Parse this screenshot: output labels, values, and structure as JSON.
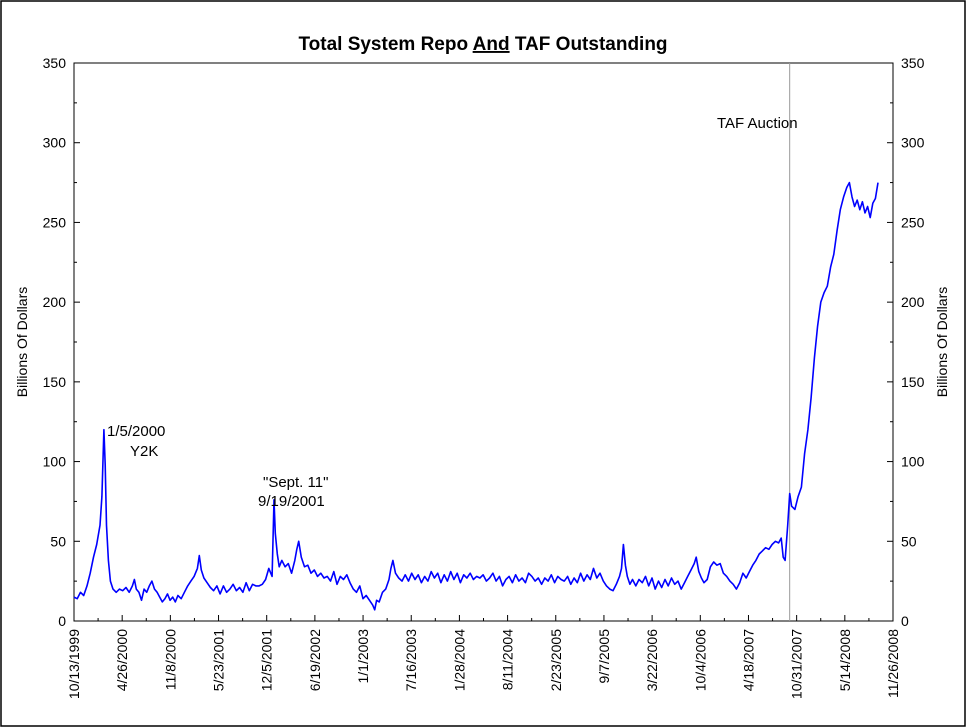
{
  "chart_data": {
    "type": "line",
    "title_parts": [
      "Total System Repo ",
      "And",
      " TAF Outstanding"
    ],
    "ylabel_left": "Billions Of Dollars",
    "ylabel_right": "Billions Of Dollars",
    "ylim": [
      0,
      350
    ],
    "y_ticks": [
      0,
      50,
      100,
      150,
      200,
      250,
      300,
      350
    ],
    "x_tick_labels": [
      "10/13/1999",
      "4/26/2000",
      "11/8/2000",
      "5/23/2001",
      "12/5/2001",
      "6/19/2002",
      "1/1/2003",
      "7/16/2003",
      "1/28/2004",
      "8/11/2004",
      "2/23/2005",
      "9/7/2005",
      "3/22/2006",
      "10/4/2006",
      "4/18/2007",
      "10/31/2007",
      "5/14/2008",
      "11/26/2008"
    ],
    "x_range_months": [
      0,
      110
    ],
    "series": [
      {
        "name": "Total System Repo And TAF",
        "color": "#0000ff",
        "points": [
          [
            0.0,
            15
          ],
          [
            0.5,
            14
          ],
          [
            1.0,
            18
          ],
          [
            1.5,
            16
          ],
          [
            2.0,
            22
          ],
          [
            2.5,
            30
          ],
          [
            3.0,
            40
          ],
          [
            3.5,
            48
          ],
          [
            4.0,
            60
          ],
          [
            4.3,
            78
          ],
          [
            4.6,
            120
          ],
          [
            4.8,
            98
          ],
          [
            5.0,
            60
          ],
          [
            5.3,
            38
          ],
          [
            5.6,
            25
          ],
          [
            6.0,
            20
          ],
          [
            6.5,
            18
          ],
          [
            7.0,
            20
          ],
          [
            7.5,
            19
          ],
          [
            8.0,
            21
          ],
          [
            8.5,
            18
          ],
          [
            9.0,
            22
          ],
          [
            9.3,
            26
          ],
          [
            9.6,
            20
          ],
          [
            10.0,
            18
          ],
          [
            10.4,
            13
          ],
          [
            10.8,
            20
          ],
          [
            11.2,
            18
          ],
          [
            11.6,
            22
          ],
          [
            12.0,
            25
          ],
          [
            12.4,
            20
          ],
          [
            12.8,
            18
          ],
          [
            13.2,
            15
          ],
          [
            13.6,
            12
          ],
          [
            14.0,
            14
          ],
          [
            14.4,
            17
          ],
          [
            14.8,
            13
          ],
          [
            15.2,
            15
          ],
          [
            15.6,
            12
          ],
          [
            16.0,
            16
          ],
          [
            16.5,
            14
          ],
          [
            17.0,
            18
          ],
          [
            17.5,
            22
          ],
          [
            18.0,
            25
          ],
          [
            18.5,
            28
          ],
          [
            19.0,
            33
          ],
          [
            19.3,
            41
          ],
          [
            19.6,
            32
          ],
          [
            20.0,
            27
          ],
          [
            20.5,
            24
          ],
          [
            21.0,
            21
          ],
          [
            21.5,
            19
          ],
          [
            22.0,
            22
          ],
          [
            22.5,
            17
          ],
          [
            23.0,
            22
          ],
          [
            23.5,
            18
          ],
          [
            24.0,
            20
          ],
          [
            24.5,
            23
          ],
          [
            25.0,
            19
          ],
          [
            25.5,
            21
          ],
          [
            26.0,
            18
          ],
          [
            26.5,
            24
          ],
          [
            27.0,
            19
          ],
          [
            27.5,
            23
          ],
          [
            28.0,
            22
          ],
          [
            28.5,
            22
          ],
          [
            29.0,
            23
          ],
          [
            29.5,
            26
          ],
          [
            30.0,
            33
          ],
          [
            30.5,
            28
          ],
          [
            30.8,
            76
          ],
          [
            31.0,
            55
          ],
          [
            31.3,
            42
          ],
          [
            31.6,
            34
          ],
          [
            32.0,
            38
          ],
          [
            32.5,
            34
          ],
          [
            33.0,
            36
          ],
          [
            33.5,
            30
          ],
          [
            34.0,
            38
          ],
          [
            34.3,
            45
          ],
          [
            34.6,
            50
          ],
          [
            35.0,
            40
          ],
          [
            35.5,
            34
          ],
          [
            36.0,
            35
          ],
          [
            36.5,
            30
          ],
          [
            37.0,
            32
          ],
          [
            37.5,
            28
          ],
          [
            38.0,
            30
          ],
          [
            38.5,
            27
          ],
          [
            39.0,
            28
          ],
          [
            39.5,
            25
          ],
          [
            40.0,
            31
          ],
          [
            40.5,
            23
          ],
          [
            41.0,
            28
          ],
          [
            41.5,
            26
          ],
          [
            42.0,
            29
          ],
          [
            42.5,
            24
          ],
          [
            43.0,
            20
          ],
          [
            43.5,
            18
          ],
          [
            44.0,
            22
          ],
          [
            44.5,
            14
          ],
          [
            45.0,
            16
          ],
          [
            45.5,
            13
          ],
          [
            46.0,
            10
          ],
          [
            46.3,
            7
          ],
          [
            46.6,
            13
          ],
          [
            47.0,
            12
          ],
          [
            47.5,
            18
          ],
          [
            48.0,
            20
          ],
          [
            48.5,
            26
          ],
          [
            48.8,
            33
          ],
          [
            49.1,
            38
          ],
          [
            49.5,
            30
          ],
          [
            50.0,
            27
          ],
          [
            50.5,
            25
          ],
          [
            51.0,
            29
          ],
          [
            51.5,
            25
          ],
          [
            52.0,
            30
          ],
          [
            52.5,
            26
          ],
          [
            53.0,
            29
          ],
          [
            53.5,
            24
          ],
          [
            54.0,
            28
          ],
          [
            54.5,
            25
          ],
          [
            55.0,
            31
          ],
          [
            55.5,
            27
          ],
          [
            56.0,
            30
          ],
          [
            56.5,
            24
          ],
          [
            57.0,
            29
          ],
          [
            57.5,
            25
          ],
          [
            58.0,
            31
          ],
          [
            58.5,
            26
          ],
          [
            59.0,
            30
          ],
          [
            59.5,
            24
          ],
          [
            60.0,
            29
          ],
          [
            60.5,
            27
          ],
          [
            61.0,
            30
          ],
          [
            61.5,
            26
          ],
          [
            62.0,
            28
          ],
          [
            62.5,
            27
          ],
          [
            63.0,
            29
          ],
          [
            63.5,
            25
          ],
          [
            64.0,
            27
          ],
          [
            64.5,
            30
          ],
          [
            65.0,
            25
          ],
          [
            65.5,
            28
          ],
          [
            66.0,
            22
          ],
          [
            66.5,
            26
          ],
          [
            67.0,
            28
          ],
          [
            67.5,
            24
          ],
          [
            68.0,
            29
          ],
          [
            68.5,
            25
          ],
          [
            69.0,
            27
          ],
          [
            69.5,
            24
          ],
          [
            70.0,
            30
          ],
          [
            70.5,
            28
          ],
          [
            71.0,
            25
          ],
          [
            71.5,
            27
          ],
          [
            72.0,
            23
          ],
          [
            72.5,
            27
          ],
          [
            73.0,
            25
          ],
          [
            73.5,
            29
          ],
          [
            74.0,
            24
          ],
          [
            74.5,
            28
          ],
          [
            75.0,
            26
          ],
          [
            75.5,
            25
          ],
          [
            76.0,
            28
          ],
          [
            76.5,
            23
          ],
          [
            77.0,
            27
          ],
          [
            77.5,
            24
          ],
          [
            78.0,
            30
          ],
          [
            78.5,
            25
          ],
          [
            79.0,
            29
          ],
          [
            79.5,
            26
          ],
          [
            80.0,
            33
          ],
          [
            80.5,
            27
          ],
          [
            81.0,
            30
          ],
          [
            81.5,
            25
          ],
          [
            82.0,
            22
          ],
          [
            82.5,
            20
          ],
          [
            83.0,
            19
          ],
          [
            83.5,
            23
          ],
          [
            84.0,
            28
          ],
          [
            84.3,
            33
          ],
          [
            84.6,
            48
          ],
          [
            84.9,
            35
          ],
          [
            85.2,
            28
          ],
          [
            85.6,
            23
          ],
          [
            86.0,
            26
          ],
          [
            86.5,
            22
          ],
          [
            87.0,
            26
          ],
          [
            87.5,
            24
          ],
          [
            88.0,
            28
          ],
          [
            88.5,
            22
          ],
          [
            89.0,
            27
          ],
          [
            89.5,
            20
          ],
          [
            90.0,
            25
          ],
          [
            90.5,
            21
          ],
          [
            91.0,
            26
          ],
          [
            91.5,
            22
          ],
          [
            92.0,
            27
          ],
          [
            92.5,
            23
          ],
          [
            93.0,
            25
          ],
          [
            93.5,
            20
          ],
          [
            94.0,
            24
          ],
          [
            94.5,
            28
          ],
          [
            95.0,
            32
          ],
          [
            95.5,
            36
          ],
          [
            95.8,
            40
          ],
          [
            96.2,
            31
          ],
          [
            96.6,
            27
          ],
          [
            97.0,
            24
          ],
          [
            97.5,
            26
          ],
          [
            98.0,
            34
          ],
          [
            98.5,
            37
          ],
          [
            99.0,
            35
          ],
          [
            99.5,
            36
          ],
          [
            100.0,
            30
          ],
          [
            100.5,
            28
          ],
          [
            101.0,
            25
          ],
          [
            101.5,
            23
          ],
          [
            102.0,
            20
          ],
          [
            102.5,
            24
          ],
          [
            103.0,
            30
          ],
          [
            103.5,
            27
          ],
          [
            104.0,
            31
          ],
          [
            104.5,
            35
          ],
          [
            105.0,
            38
          ],
          [
            105.5,
            42
          ],
          [
            106.0,
            44
          ],
          [
            106.5,
            46
          ],
          [
            107.0,
            45
          ],
          [
            107.5,
            48
          ],
          [
            108.0,
            50
          ],
          [
            108.5,
            49
          ],
          [
            108.9,
            52
          ],
          [
            109.2,
            40
          ],
          [
            109.5,
            38
          ],
          [
            109.9,
            60
          ],
          [
            110.2,
            80
          ],
          [
            110.5,
            72
          ],
          [
            111.0,
            70
          ],
          [
            111.5,
            78
          ],
          [
            112.0,
            84
          ],
          [
            112.5,
            105
          ],
          [
            113.0,
            120
          ],
          [
            113.5,
            140
          ],
          [
            114.0,
            165
          ],
          [
            114.5,
            185
          ],
          [
            115.0,
            200
          ],
          [
            115.5,
            206
          ],
          [
            116.0,
            210
          ],
          [
            116.5,
            222
          ],
          [
            117.0,
            230
          ],
          [
            117.5,
            245
          ],
          [
            118.0,
            258
          ],
          [
            118.5,
            266
          ],
          [
            119.0,
            272
          ],
          [
            119.4,
            275
          ],
          [
            119.8,
            266
          ],
          [
            120.2,
            260
          ],
          [
            120.6,
            264
          ],
          [
            121.0,
            258
          ],
          [
            121.4,
            263
          ],
          [
            121.8,
            256
          ],
          [
            122.2,
            260
          ],
          [
            122.6,
            253
          ],
          [
            123.0,
            262
          ],
          [
            123.4,
            265
          ],
          [
            123.8,
            275
          ]
        ]
      }
    ],
    "markers": [
      {
        "label": "TAF Auction",
        "x": 110.2
      }
    ],
    "annotations": [
      {
        "id": "y2k",
        "lines": [
          "1/5/2000",
          "Y2K"
        ]
      },
      {
        "id": "sept11",
        "lines": [
          "\"Sept. 11\"",
          "9/19/2001"
        ]
      },
      {
        "id": "taf",
        "lines": [
          "TAF Auction"
        ]
      }
    ]
  }
}
